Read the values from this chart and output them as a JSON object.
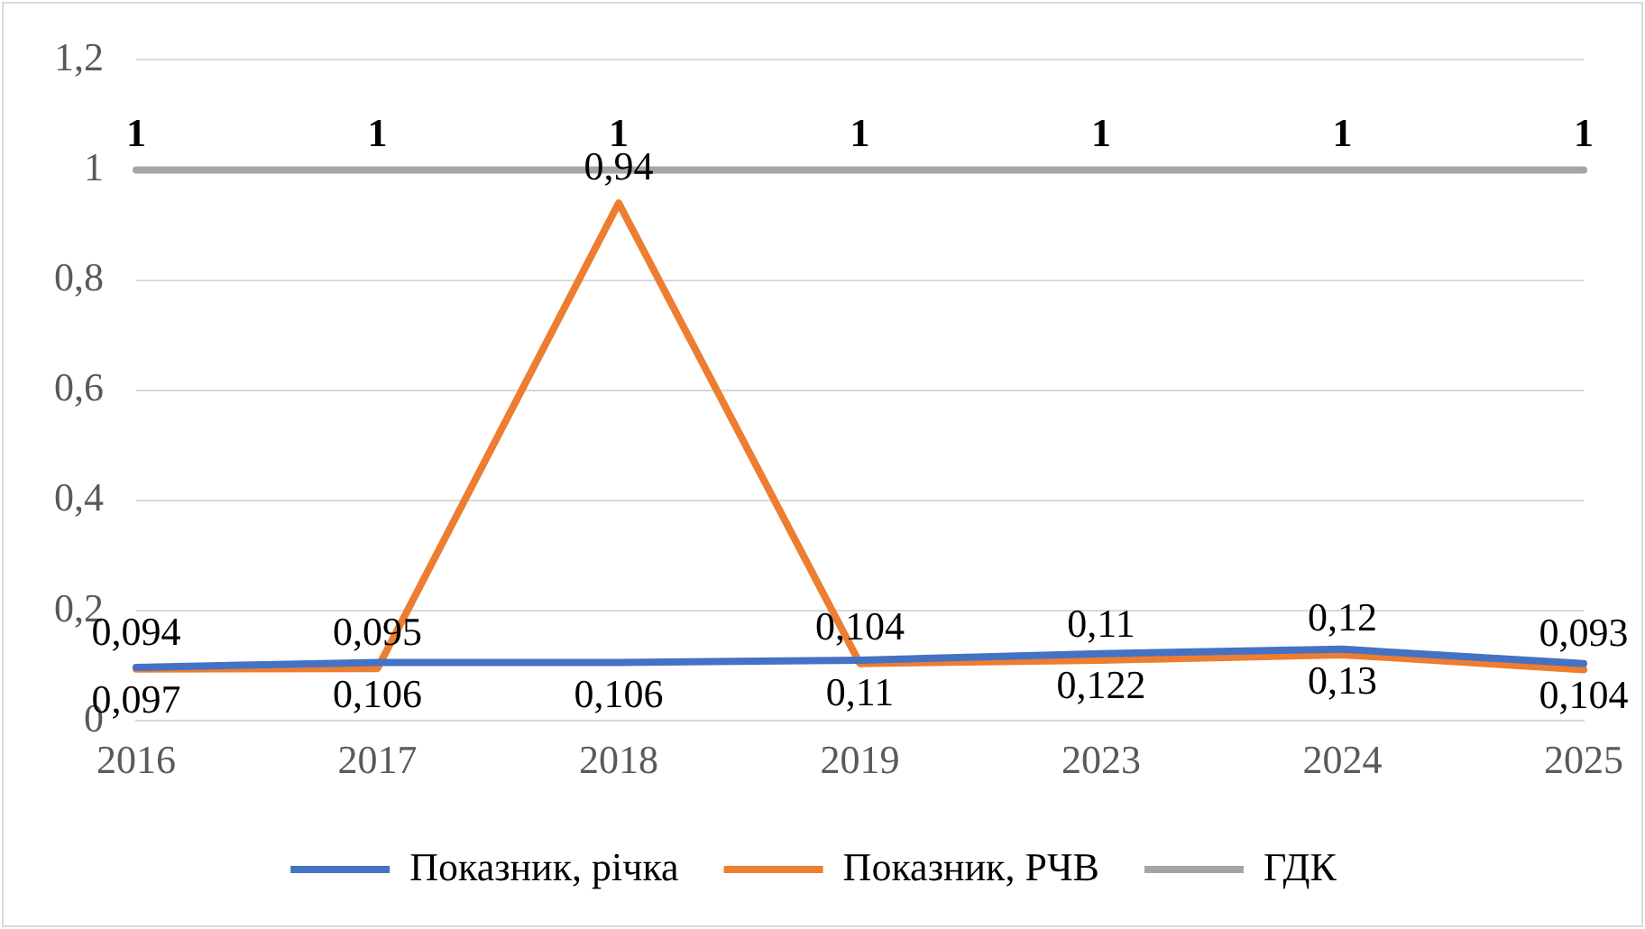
{
  "chart_data": {
    "type": "line",
    "categories": [
      "2016",
      "2017",
      "2018",
      "2019",
      "2023",
      "2024",
      "2025"
    ],
    "series": [
      {
        "name": "Показник, річка",
        "color": "#4472c4",
        "values": [
          0.097,
          0.106,
          0.106,
          0.11,
          0.122,
          0.13,
          0.104
        ],
        "value_labels": [
          "0,097",
          "0,106",
          "0,106",
          "0,11",
          "0,122",
          "0,13",
          "0,104"
        ]
      },
      {
        "name": "Показник, РЧВ",
        "color": "#ed7d31",
        "values": [
          0.094,
          0.095,
          0.94,
          0.104,
          0.11,
          0.12,
          0.093
        ],
        "value_labels": [
          "0,094",
          "0,095",
          "0,94",
          "0,104",
          "0,11",
          "0,12",
          "0,093"
        ]
      },
      {
        "name": "ГДК",
        "color": "#a5a5a5",
        "values": [
          1,
          1,
          1,
          1,
          1,
          1,
          1
        ]
      }
    ],
    "ylim": [
      0,
      1.2
    ],
    "yticks": [
      {
        "value": 0,
        "label": "0"
      },
      {
        "value": 0.2,
        "label": "0,2"
      },
      {
        "value": 0.4,
        "label": "0,4"
      },
      {
        "value": 0.6,
        "label": "0,6"
      },
      {
        "value": 0.8,
        "label": "0,8"
      },
      {
        "value": 1,
        "label": "1"
      },
      {
        "value": 1.2,
        "label": "1,2"
      }
    ],
    "grid": "y",
    "legend": "bottom",
    "marker": "none",
    "line_style": "solid",
    "data_labels": true
  }
}
